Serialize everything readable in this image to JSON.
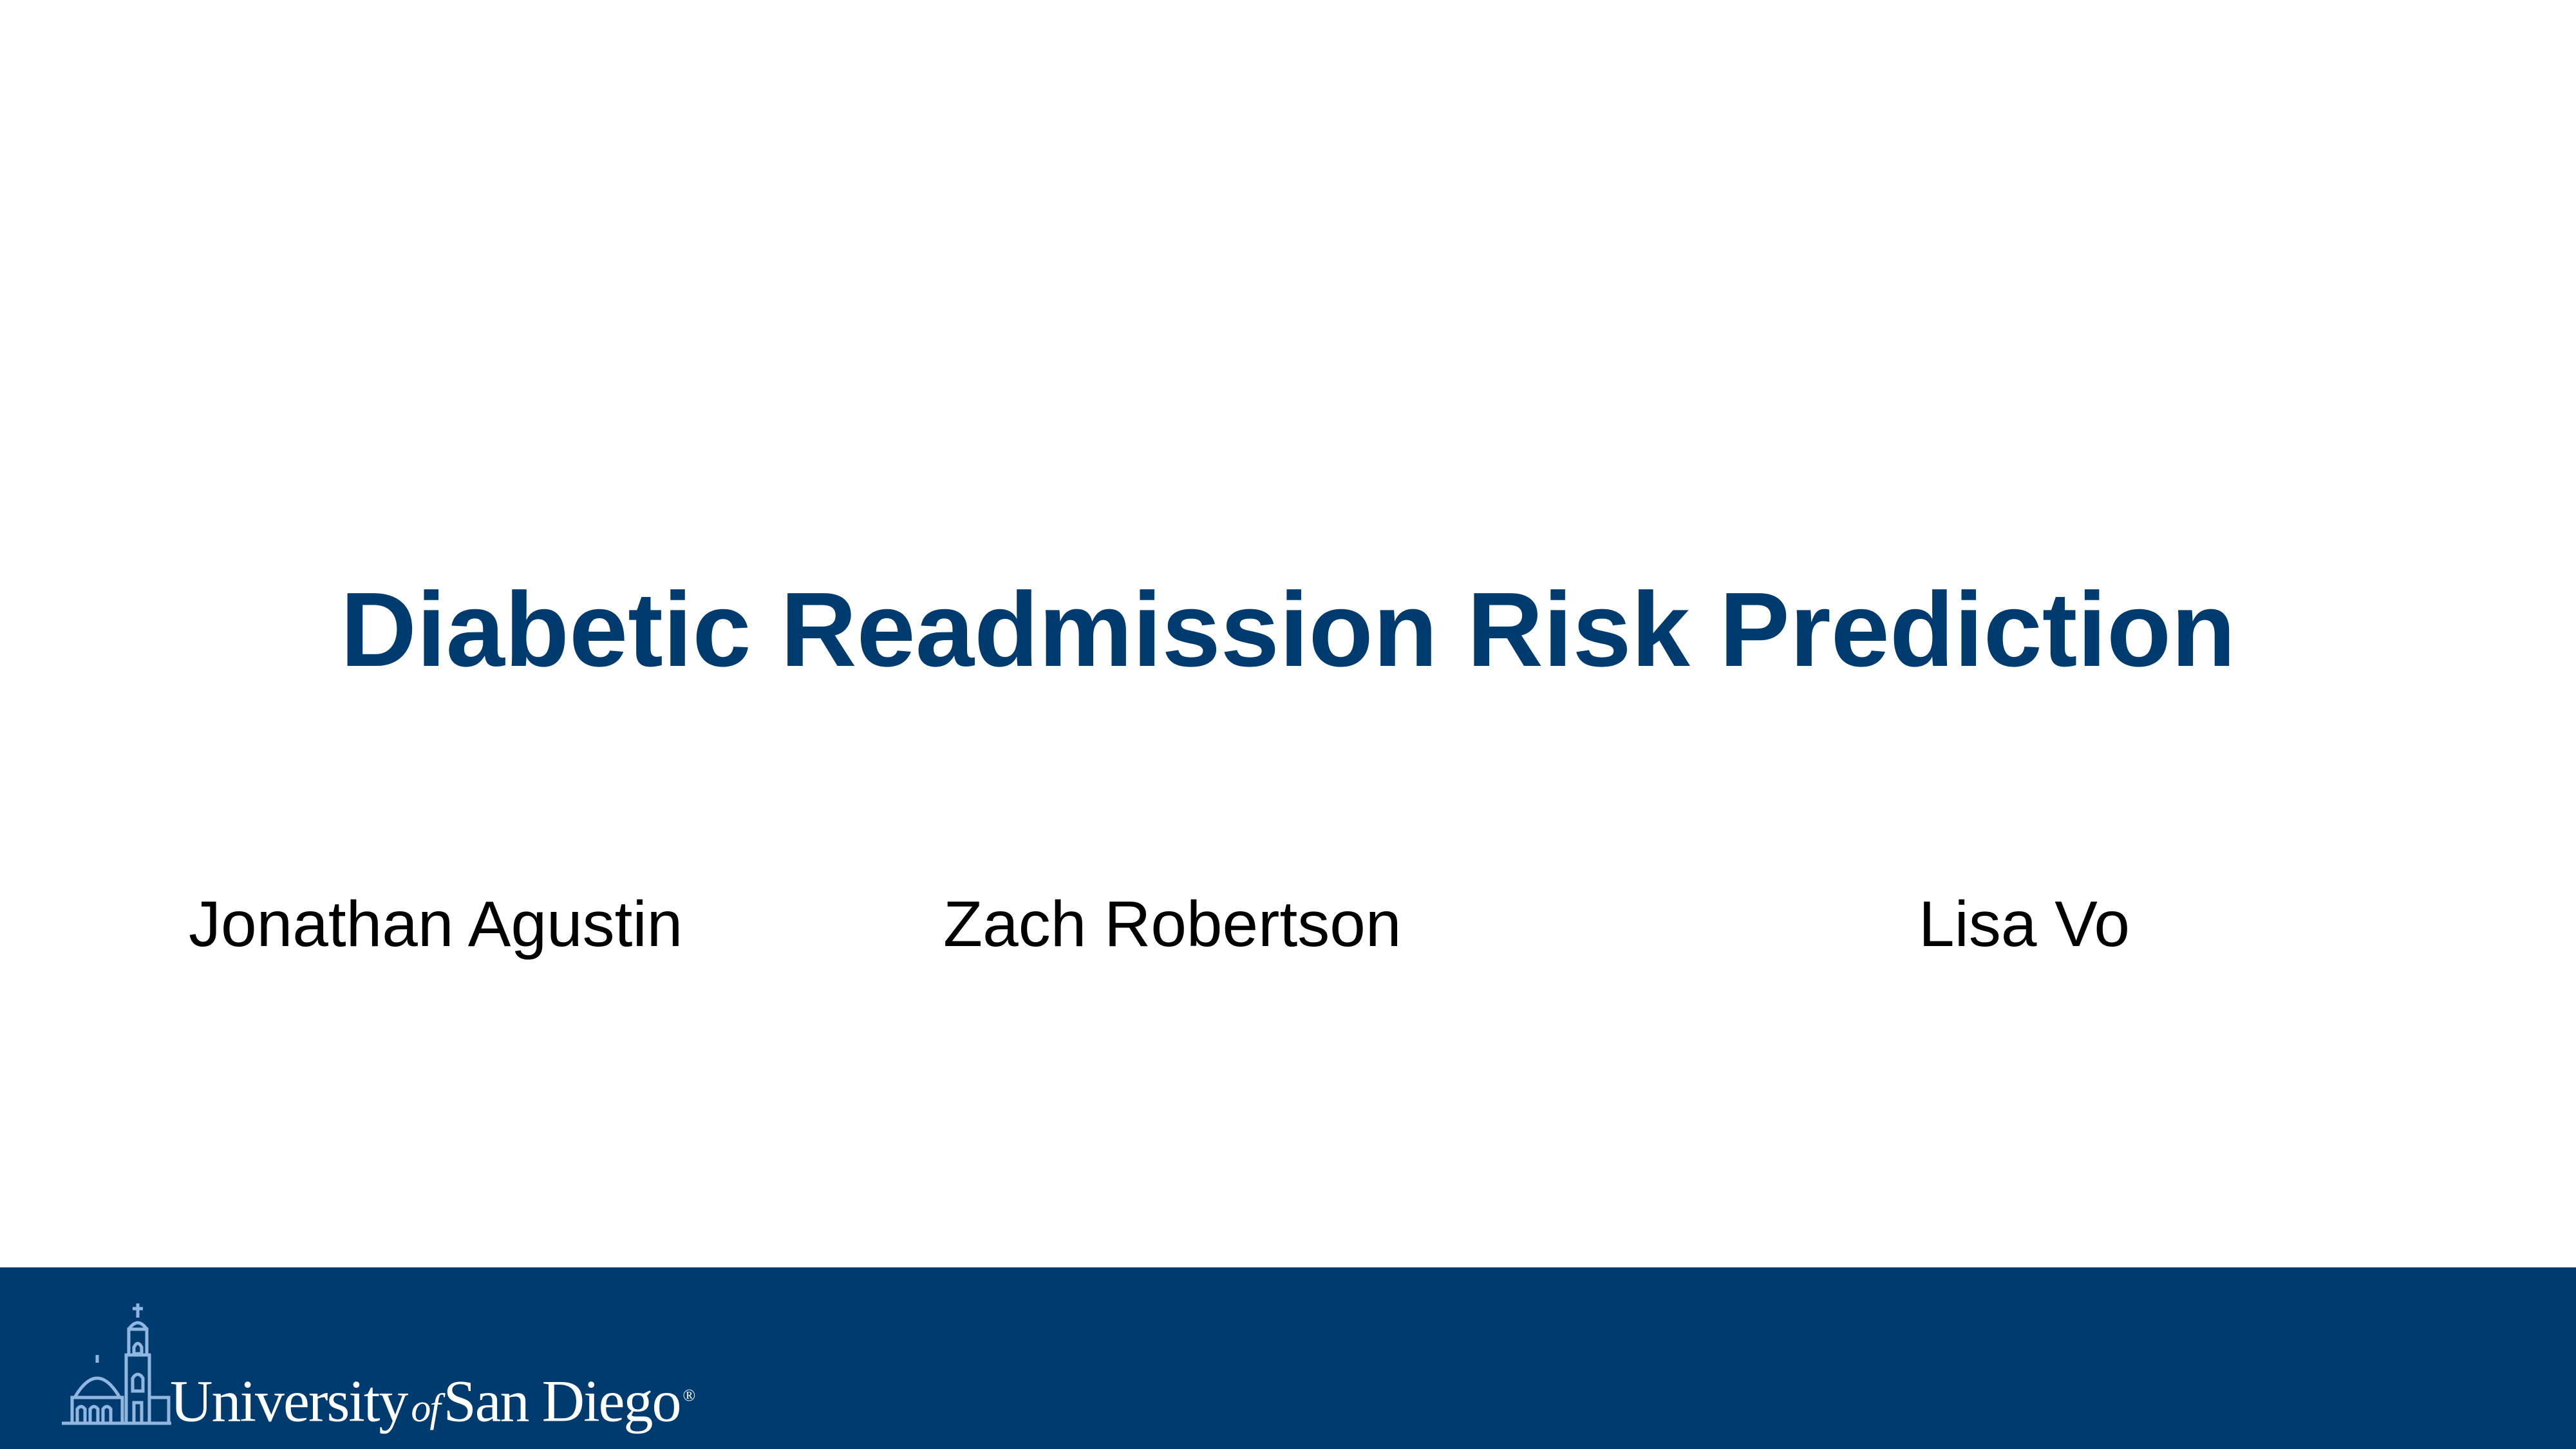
{
  "slide": {
    "title": "Diabetic Readmission Risk Prediction",
    "authors": [
      "Jonathan Agustin",
      "Zach Robertson",
      "Lisa Vo"
    ]
  },
  "footer": {
    "logo": {
      "icon": "mission-church-icon",
      "name_part1": "University",
      "name_of": "of",
      "name_part2": "San Diego",
      "registered_mark": "®"
    }
  },
  "colors": {
    "brand_navy": "#003b70",
    "logo_light_blue": "#8fb7e0",
    "text": "#000000",
    "background": "#ffffff"
  }
}
